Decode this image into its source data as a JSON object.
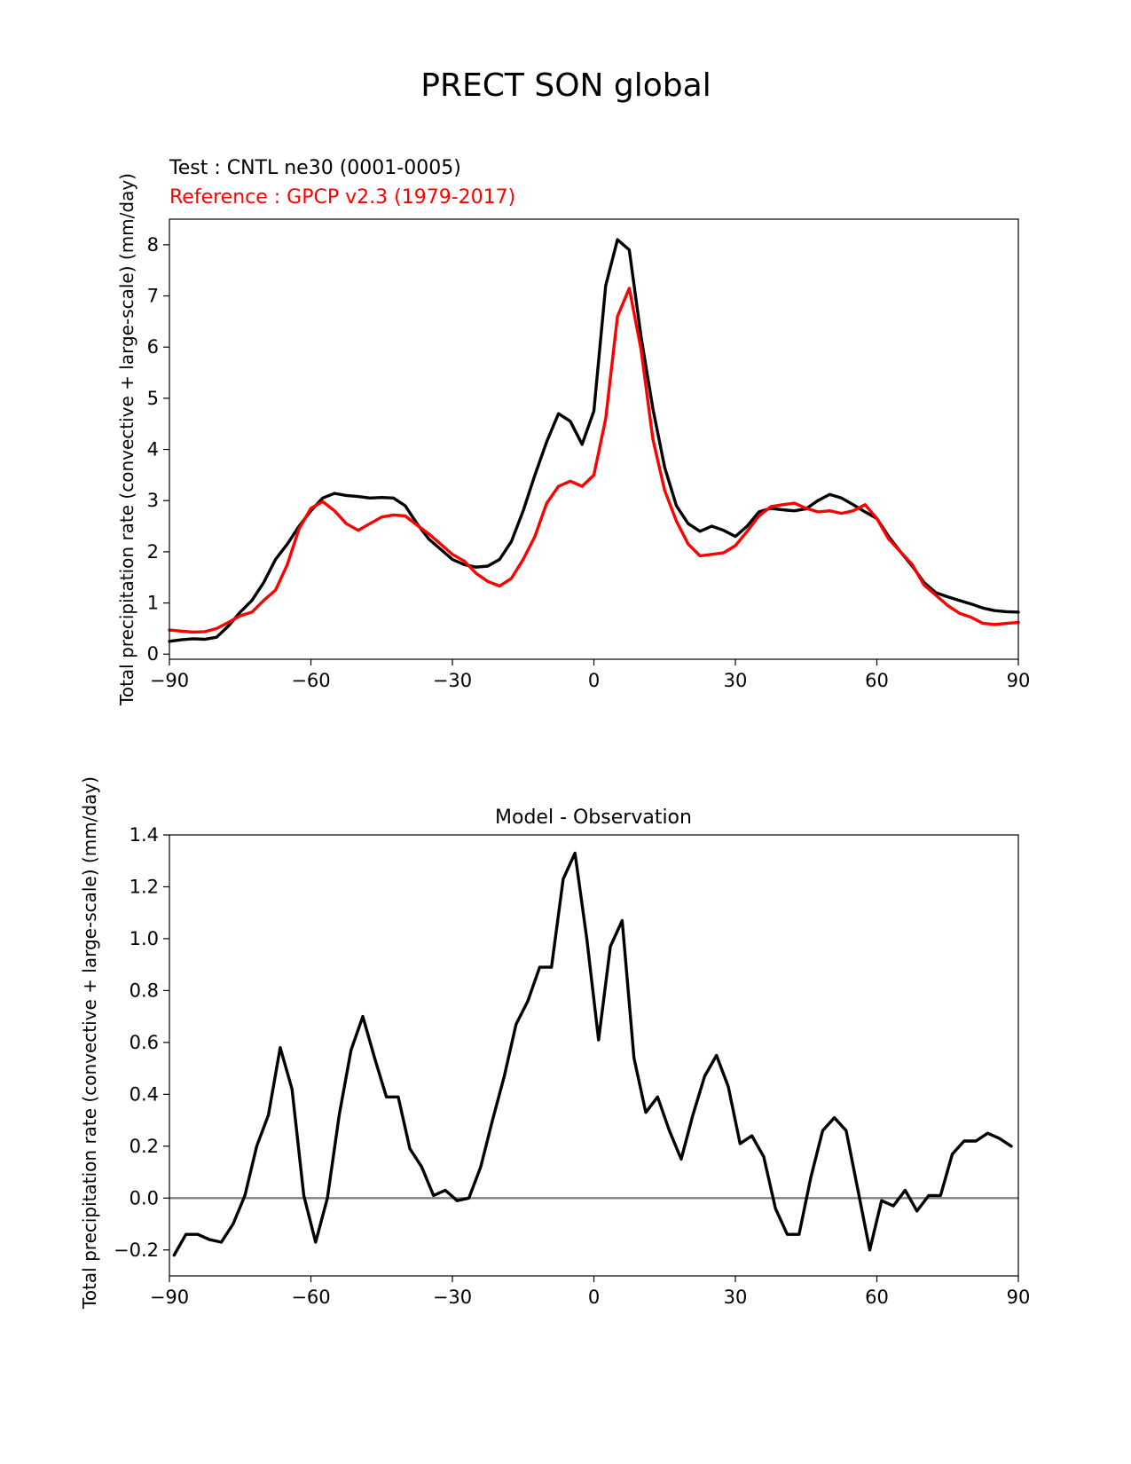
{
  "figure": {
    "title": "PRECT SON global"
  },
  "colors": {
    "test": "#000000",
    "reference": "#ff0000",
    "zero_line": "#808080"
  },
  "chart_data": [
    {
      "type": "line",
      "test_label": "Test : CNTL ne30 (0001-0005)",
      "reference_label": "Reference : GPCP v2.3 (1979-2017)",
      "title": "",
      "xlabel": "",
      "ylabel": "Total precipitation rate (convective + large-scale) (mm/day)",
      "xlim": [
        -90,
        90
      ],
      "ylim": [
        -0.1,
        8.5
      ],
      "xticks": [
        "−90",
        "−60",
        "−30",
        "0",
        "30",
        "60",
        "90"
      ],
      "yticks": [
        "0",
        "1",
        "2",
        "3",
        "4",
        "5",
        "6",
        "7",
        "8"
      ],
      "series": [
        {
          "name": "Test",
          "x": [
            -90,
            -87.5,
            -85,
            -82.5,
            -80,
            -77.5,
            -75,
            -72.5,
            -70,
            -67.5,
            -65,
            -62.5,
            -60,
            -57.5,
            -55,
            -52.5,
            -50,
            -47.5,
            -45,
            -42.5,
            -40,
            -37.5,
            -35,
            -32.5,
            -30,
            -27.5,
            -25,
            -22.5,
            -20,
            -17.5,
            -15,
            -12.5,
            -10,
            -7.5,
            -5,
            -2.5,
            0,
            2.5,
            5,
            7.5,
            10,
            12.5,
            15,
            17.5,
            20,
            22.5,
            25,
            27.5,
            30,
            32.5,
            35,
            37.5,
            40,
            42.5,
            45,
            47.5,
            50,
            52.5,
            55,
            57.5,
            60,
            62.5,
            65,
            67.5,
            70,
            72.5,
            75,
            77.5,
            80,
            82.5,
            85,
            87.5,
            90
          ],
          "values": [
            0.25,
            0.28,
            0.3,
            0.29,
            0.33,
            0.55,
            0.82,
            1.05,
            1.4,
            1.85,
            2.15,
            2.5,
            2.8,
            3.05,
            3.14,
            3.1,
            3.08,
            3.05,
            3.06,
            3.05,
            2.9,
            2.55,
            2.25,
            2.05,
            1.85,
            1.75,
            1.7,
            1.72,
            1.85,
            2.2,
            2.8,
            3.5,
            4.15,
            4.7,
            4.55,
            4.1,
            4.75,
            7.2,
            8.1,
            7.9,
            6.2,
            4.8,
            3.65,
            2.9,
            2.55,
            2.4,
            2.5,
            2.42,
            2.3,
            2.5,
            2.78,
            2.85,
            2.82,
            2.8,
            2.84,
            3.0,
            3.12,
            3.05,
            2.92,
            2.78,
            2.65,
            2.3,
            2.0,
            1.72,
            1.4,
            1.2,
            1.12,
            1.05,
            0.98,
            0.9,
            0.85,
            0.83,
            0.82
          ]
        },
        {
          "name": "Reference",
          "x": [
            -90,
            -87.5,
            -85,
            -82.5,
            -80,
            -77.5,
            -75,
            -72.5,
            -70,
            -67.5,
            -65,
            -62.5,
            -60,
            -57.5,
            -55,
            -52.5,
            -50,
            -47.5,
            -45,
            -42.5,
            -40,
            -37.5,
            -35,
            -32.5,
            -30,
            -27.5,
            -25,
            -22.5,
            -20,
            -17.5,
            -15,
            -12.5,
            -10,
            -7.5,
            -5,
            -2.5,
            0,
            2.5,
            5,
            7.5,
            10,
            12.5,
            15,
            17.5,
            20,
            22.5,
            25,
            27.5,
            30,
            32.5,
            35,
            37.5,
            40,
            42.5,
            45,
            47.5,
            50,
            52.5,
            55,
            57.5,
            60,
            62.5,
            65,
            67.5,
            70,
            72.5,
            75,
            77.5,
            80,
            82.5,
            85,
            87.5,
            90
          ],
          "values": [
            0.47,
            0.45,
            0.43,
            0.44,
            0.5,
            0.62,
            0.75,
            0.82,
            1.05,
            1.25,
            1.75,
            2.45,
            2.85,
            2.98,
            2.8,
            2.55,
            2.42,
            2.55,
            2.68,
            2.72,
            2.7,
            2.52,
            2.35,
            2.15,
            1.95,
            1.82,
            1.58,
            1.42,
            1.33,
            1.48,
            1.85,
            2.3,
            2.95,
            3.28,
            3.38,
            3.28,
            3.5,
            4.6,
            6.6,
            7.15,
            5.95,
            4.2,
            3.2,
            2.6,
            2.15,
            1.92,
            1.95,
            1.98,
            2.12,
            2.4,
            2.7,
            2.88,
            2.92,
            2.95,
            2.85,
            2.78,
            2.8,
            2.75,
            2.8,
            2.92,
            2.65,
            2.25,
            2.0,
            1.75,
            1.35,
            1.15,
            0.95,
            0.8,
            0.72,
            0.6,
            0.58,
            0.6,
            0.62
          ]
        }
      ]
    },
    {
      "type": "line",
      "title": "Model - Observation",
      "xlabel": "",
      "ylabel": "Total precipitation rate (convective + large-scale) (mm/day)",
      "xlim": [
        -90,
        90
      ],
      "ylim": [
        -0.3,
        1.4
      ],
      "xticks": [
        "−90",
        "−60",
        "−30",
        "0",
        "30",
        "60",
        "90"
      ],
      "yticks": [
        "−0.2",
        "0.0",
        "0.2",
        "0.4",
        "0.6",
        "0.8",
        "1.0",
        "1.2",
        "1.4"
      ],
      "zero_line": true,
      "series": [
        {
          "name": "Model - Observation",
          "x": [
            -89,
            -86.5,
            -84,
            -81.5,
            -79,
            -76.5,
            -74,
            -71.5,
            -69,
            -66.5,
            -64,
            -61.5,
            -59,
            -56.5,
            -54,
            -51.5,
            -49,
            -46.5,
            -44,
            -41.5,
            -39,
            -36.5,
            -34,
            -31.5,
            -29,
            -26.5,
            -24,
            -21.5,
            -19,
            -16.5,
            -14,
            -11.5,
            -9,
            -6.5,
            -4,
            -1.5,
            1,
            3.5,
            6,
            8.5,
            11,
            13.5,
            16,
            18.5,
            21,
            23.5,
            26,
            28.5,
            31,
            33.5,
            36,
            38.5,
            41,
            43.5,
            46,
            48.5,
            51,
            53.5,
            56,
            58.5,
            61,
            63.5,
            66,
            68.5,
            71,
            73.5,
            76,
            78.5,
            81,
            83.5,
            86,
            88.5
          ],
          "values": [
            -0.22,
            -0.14,
            -0.14,
            -0.16,
            -0.17,
            -0.1,
            0.01,
            0.2,
            0.32,
            0.58,
            0.42,
            0.01,
            -0.17,
            0.0,
            0.32,
            0.57,
            0.7,
            0.54,
            0.39,
            0.39,
            0.19,
            0.12,
            0.01,
            0.03,
            -0.01,
            0.0,
            0.12,
            0.3,
            0.47,
            0.67,
            0.76,
            0.89,
            0.89,
            1.23,
            1.33,
            1.0,
            0.61,
            0.97,
            1.07,
            0.54,
            0.33,
            0.39,
            0.26,
            0.15,
            0.32,
            0.47,
            0.55,
            0.43,
            0.21,
            0.24,
            0.16,
            -0.04,
            -0.14,
            -0.14,
            0.08,
            0.26,
            0.31,
            0.26,
            0.03,
            -0.2,
            -0.01,
            -0.03,
            0.03,
            -0.05,
            0.01,
            0.01,
            0.17,
            0.22,
            0.22,
            0.25,
            0.23,
            0.2
          ]
        }
      ]
    }
  ]
}
